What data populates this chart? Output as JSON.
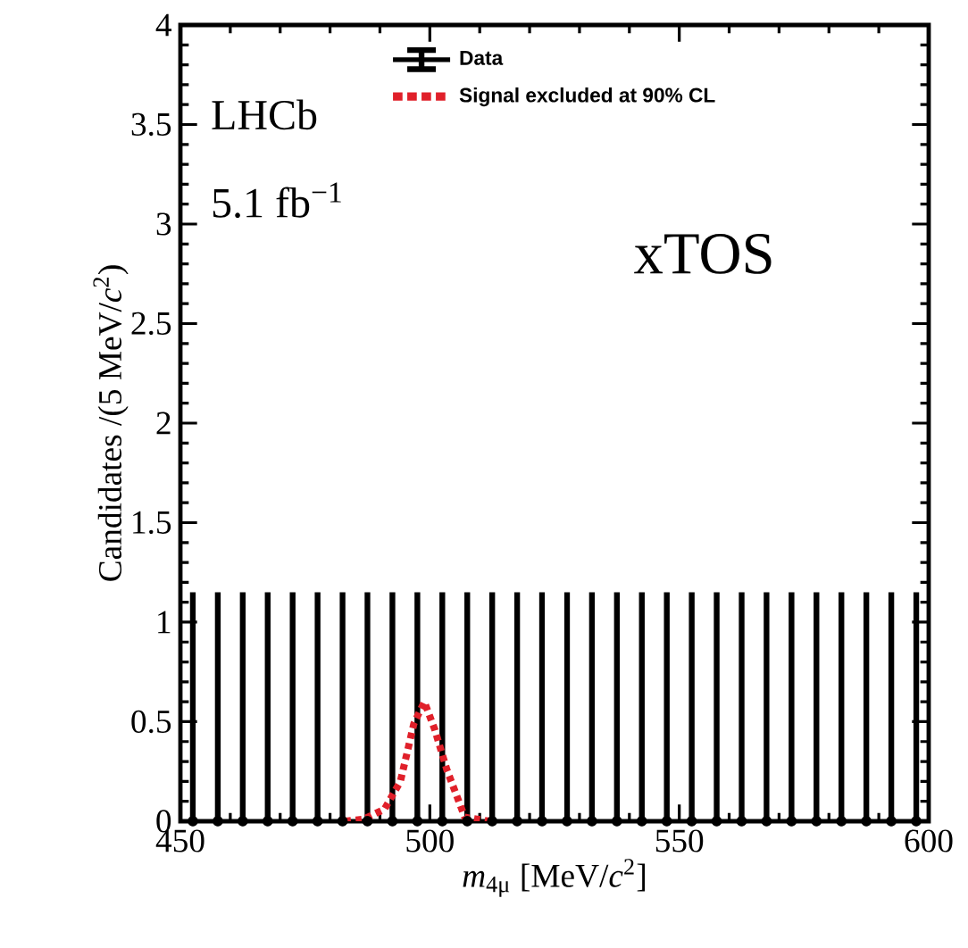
{
  "chart_data": {
    "type": "scatter",
    "xlabel": "*m*$_{4μ}$ [MeV/*c*$^{2}$]",
    "ylabel": "Candidates /(5 MeV/*c*$^{2}$)",
    "annotations": [
      "LHCb",
      "5.1 fb$^{−1}$",
      "xTOS"
    ],
    "xlim": [
      450,
      600
    ],
    "xticks": [
      450,
      500,
      550,
      600
    ],
    "ylim": [
      0,
      4
    ],
    "yticks": [
      0,
      0.5,
      1,
      1.5,
      2,
      2.5,
      3,
      3.5,
      4
    ],
    "legend": "top",
    "grid": false,
    "series": [
      {
        "name": "Data",
        "marker": "circle",
        "color": "#000000",
        "x": [
          452.5,
          457.5,
          462.5,
          467.5,
          472.5,
          477.5,
          482.5,
          487.5,
          492.5,
          497.5,
          502.5,
          507.5,
          512.5,
          517.5,
          522.5,
          527.5,
          532.5,
          537.5,
          542.5,
          547.5,
          552.5,
          557.5,
          562.5,
          567.5,
          572.5,
          577.5,
          582.5,
          587.5,
          592.5,
          597.5
        ],
        "values": [
          0,
          0,
          0,
          0,
          0,
          0,
          0,
          0,
          0,
          0,
          0,
          0,
          0,
          0,
          0,
          0,
          0,
          0,
          0,
          0,
          0,
          0,
          0,
          0,
          0,
          0,
          0,
          0,
          0,
          0
        ],
        "errors": [
          [
            0,
            1.15
          ],
          [
            0,
            1.15
          ],
          [
            0,
            1.15
          ],
          [
            0,
            1.15
          ],
          [
            0,
            1.15
          ],
          [
            0,
            1.15
          ],
          [
            0,
            1.15
          ],
          [
            0,
            1.15
          ],
          [
            0,
            1.15
          ],
          [
            0,
            1.15
          ],
          [
            0,
            1.15
          ],
          [
            0,
            1.15
          ],
          [
            0,
            1.15
          ],
          [
            0,
            1.15
          ],
          [
            0,
            1.15
          ],
          [
            0,
            1.15
          ],
          [
            0,
            1.15
          ],
          [
            0,
            1.15
          ],
          [
            0,
            1.15
          ],
          [
            0,
            1.15
          ],
          [
            0,
            1.15
          ],
          [
            0,
            1.15
          ],
          [
            0,
            1.15
          ],
          [
            0,
            1.15
          ],
          [
            0,
            1.15
          ],
          [
            0,
            1.15
          ],
          [
            0,
            1.15
          ],
          [
            0,
            1.15
          ],
          [
            0,
            1.15
          ],
          [
            0,
            1.15
          ]
        ]
      },
      {
        "name": "Signal excluded at 90% CL",
        "type": "line",
        "line_style": "dotted",
        "marker": "none",
        "color": "#e0202a",
        "x": [
          483,
          486.7,
          490.9,
          494.1,
          496.8,
          498.9,
          501,
          503.4,
          507,
          512
        ],
        "values": [
          0,
          0.01,
          0.06,
          0.2,
          0.49,
          0.6,
          0.46,
          0.26,
          0.02,
          0
        ]
      }
    ]
  }
}
